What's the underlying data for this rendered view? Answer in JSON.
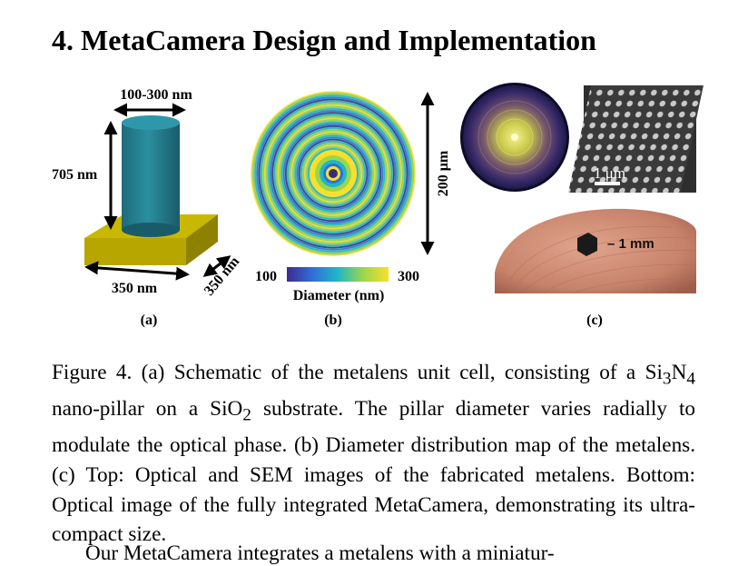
{
  "section": {
    "title": "4. MetaCamera Design and Implementation"
  },
  "figure": {
    "panel_a": {
      "width_label": "100-300 nm",
      "height_label": "705 nm",
      "base_x_label": "350 nm",
      "base_y_label": "350 nm",
      "caption_letter": "(a)"
    },
    "panel_b": {
      "size_label": "200 μm",
      "colorbar_min": "100",
      "colorbar_max": "300",
      "colorbar_title": "Diameter (nm)",
      "caption_letter": "(b)"
    },
    "panel_c": {
      "scale_bar": "1 μm",
      "size_annotation": "– 1 mm",
      "caption_letter": "(c)"
    }
  },
  "caption": {
    "lead": "Figure 4.",
    "part1": "(a) Schematic of the metalens unit cell, consisting of a",
    "si": "Si",
    "si_sub": "3",
    "n": "N",
    "n_sub": "4",
    "part2": "nano-pillar on a SiO",
    "o_sub": "2",
    "part3": "substrate. The pillar diameter varies radially to modulate the optical phase. (b) Diameter distribution map of the metalens. (c) Top: Optical and SEM images of the fabricated metalens. Bottom: Optical image of the fully integrated MetaCamera, demonstrating its ultra-compact size."
  },
  "body": {
    "text": "Our MetaCamera integrates a metalens with a miniatur-"
  }
}
